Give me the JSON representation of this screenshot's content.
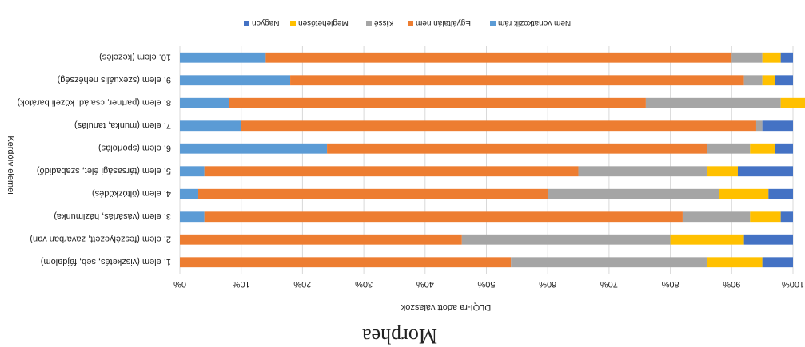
{
  "chart_data": {
    "type": "bar",
    "orientation": "horizontal",
    "stacked": "percent",
    "title": "Morphea",
    "xlabel": "DLQI-ra adott válaszok",
    "ylabel": "Kérdőív elemei",
    "x_ticks": [
      "0%",
      "10%",
      "20%",
      "30%",
      "40%",
      "50%",
      "60%",
      "70%",
      "80%",
      "90%",
      "100%"
    ],
    "xlim": [
      0,
      100
    ],
    "legend_position": "top",
    "grid": "vertical",
    "categories": [
      "1. elem (viszketés, seb, fájdalom)",
      "2. elem (feszélyezett, zavarban van)",
      "3. elem (vásárlás, házimunka)",
      "4. elem (öltözködés)",
      "5. elem (társasági élet, szabadidő)",
      "6. elem (sportolás)",
      "7. elem (munka, tanulás)",
      "8. elem (partner, család, közeli barátok)",
      "9. elem (szexuális nehézség)",
      "10. elem (kezelés)"
    ],
    "series": [
      {
        "name": "Nem vonatkozik rám",
        "color": "#5b9bd5",
        "values": [
          0,
          0,
          4,
          3,
          4,
          24,
          10,
          8,
          18,
          14
        ]
      },
      {
        "name": "Egyáltalán nem",
        "color": "#ed7d31",
        "values": [
          54,
          46,
          78,
          57,
          61,
          62,
          84,
          68,
          74,
          76
        ]
      },
      {
        "name": "Kissé",
        "color": "#a5a5a5",
        "values": [
          32,
          34,
          11,
          28,
          21,
          7,
          1,
          22,
          3,
          5
        ]
      },
      {
        "name": "Meglehetősen",
        "color": "#ffc000",
        "values": [
          9,
          12,
          5,
          8,
          5,
          4,
          0,
          5,
          2,
          3
        ]
      },
      {
        "name": "Nagyon",
        "color": "#4472c4",
        "values": [
          5,
          8,
          2,
          4,
          9,
          3,
          5,
          3,
          3,
          2
        ]
      }
    ]
  }
}
